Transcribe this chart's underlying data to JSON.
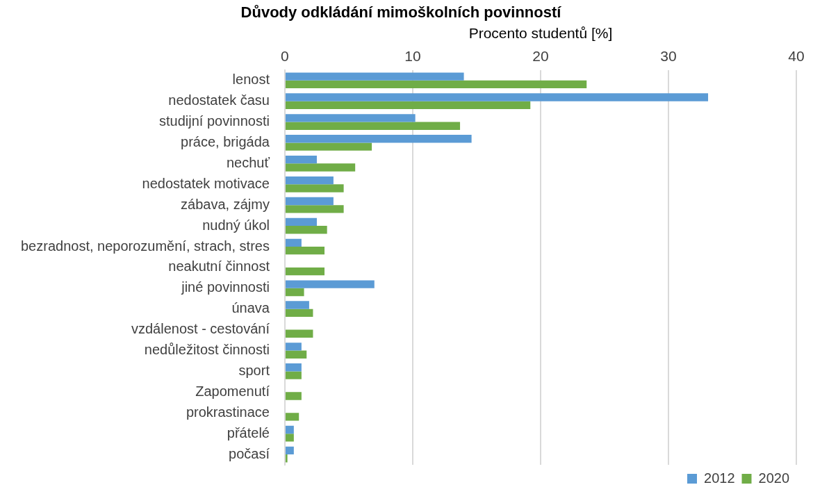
{
  "chart_data": {
    "type": "bar",
    "orientation": "horizontal",
    "title": "Důvody odkládání mimoškolních povinností",
    "xlabel": "Procento studentů [%]",
    "categories": [
      "lenost",
      "nedostatek času",
      "studijní povinnosti",
      "práce, brigáda",
      "nechuť",
      "nedostatek motivace",
      "zábava, zájmy",
      "nudný úkol",
      "bezradnost, neporozumění, strach, stres",
      "neakutní činnost",
      "jiné povinnosti",
      "únava",
      "vzdálenost - cestování",
      "nedůležitost činnosti",
      "sport",
      "Zapomenutí",
      "prokrastinace",
      "přátelé",
      "počasí"
    ],
    "series": [
      {
        "name": "2012",
        "color": "#5b9bd5",
        "values": [
          14.0,
          33.1,
          10.2,
          14.6,
          2.5,
          3.8,
          3.8,
          2.5,
          1.3,
          null,
          7.0,
          1.9,
          null,
          1.3,
          1.3,
          null,
          null,
          0.7,
          0.7
        ]
      },
      {
        "name": "2020",
        "color": "#70ad47",
        "values": [
          23.6,
          19.2,
          13.7,
          6.8,
          5.5,
          4.6,
          4.6,
          3.3,
          3.1,
          3.1,
          1.5,
          2.2,
          2.2,
          1.7,
          1.3,
          1.3,
          1.1,
          0.7,
          0.2
        ]
      }
    ],
    "xlim": [
      0,
      40
    ],
    "xticks": [
      0,
      10,
      20,
      30,
      40
    ],
    "grid": "x",
    "legend": "bottom right"
  }
}
